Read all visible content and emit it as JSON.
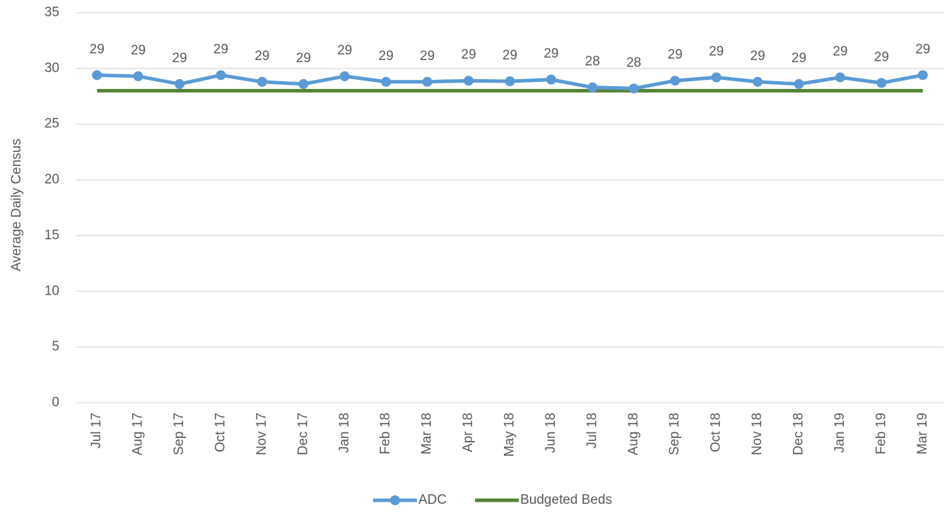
{
  "chart_data": {
    "type": "line",
    "y_label": "Average Daily Census",
    "categories": [
      "Jul 17",
      "Aug 17",
      "Sep 17",
      "Oct 17",
      "Nov 17",
      "Dec 17",
      "Jan 18",
      "Feb 18",
      "Mar 18",
      "Apr 18",
      "May 18",
      "Jun 18",
      "Jul 18",
      "Aug 18",
      "Sep 18",
      "Oct 18",
      "Nov 18",
      "Dec 18",
      "Jan 19",
      "Feb 19",
      "Mar 19"
    ],
    "series": [
      {
        "name": "ADC",
        "color": "#5b9bd5",
        "markers": true,
        "values": [
          29.4,
          29.3,
          28.6,
          29.4,
          28.8,
          28.6,
          29.3,
          28.8,
          28.8,
          28.9,
          28.85,
          29.0,
          28.3,
          28.2,
          28.9,
          29.2,
          28.8,
          28.6,
          29.2,
          28.7,
          29.4
        ],
        "value_labels": [
          "29",
          "29",
          "29",
          "29",
          "29",
          "29",
          "29",
          "29",
          "29",
          "29",
          "29",
          "29",
          "28",
          "28",
          "29",
          "29",
          "29",
          "29",
          "29",
          "29",
          "29"
        ]
      },
      {
        "name": "Budgeted Beds",
        "color": "#548235",
        "markers": false,
        "values": [
          28,
          28,
          28,
          28,
          28,
          28,
          28,
          28,
          28,
          28,
          28,
          28,
          28,
          28,
          28,
          28,
          28,
          28,
          28,
          28,
          28
        ]
      }
    ],
    "ylim": [
      0,
      35
    ],
    "yticks": [
      0,
      5,
      10,
      15,
      20,
      25,
      30,
      35
    ],
    "grid": true,
    "legend": "bottom"
  }
}
